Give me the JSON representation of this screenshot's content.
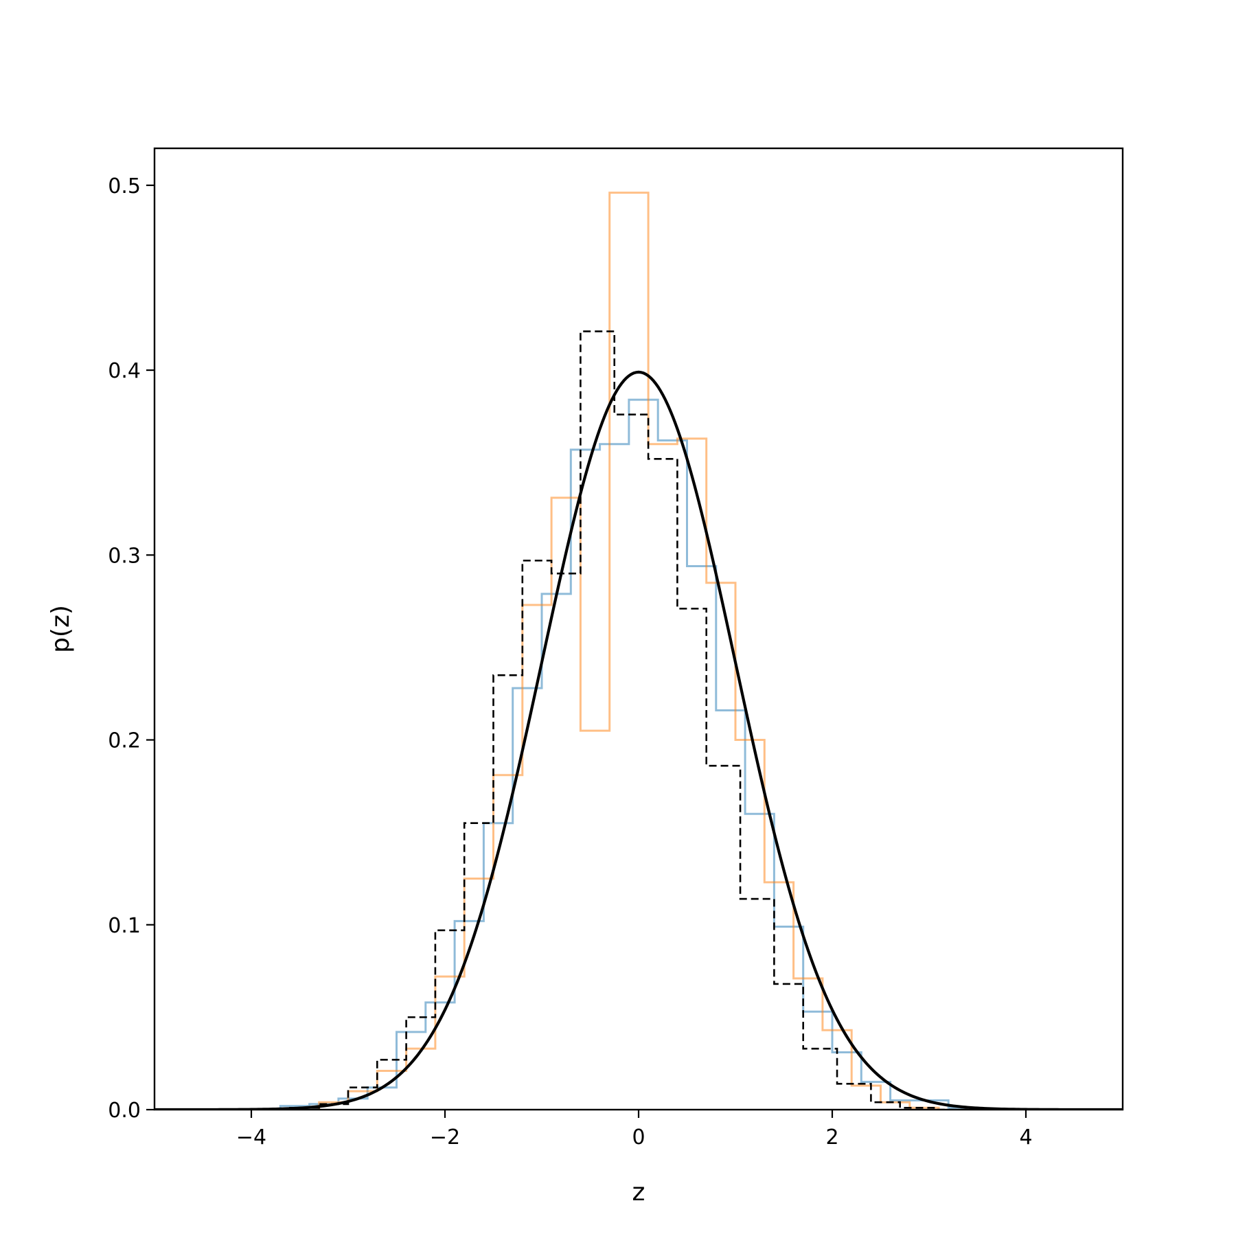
{
  "chart_data": {
    "type": "histogram",
    "xlabel": "z",
    "ylabel": "p(z)",
    "xlim": [
      -5,
      5
    ],
    "ylim": [
      0,
      0.52
    ],
    "x_ticks": [
      -4,
      -2,
      0,
      2,
      4
    ],
    "x_tick_labels": [
      "−4",
      "−2",
      "0",
      "2",
      "4"
    ],
    "y_ticks": [
      0.0,
      0.1,
      0.2,
      0.3,
      0.4,
      0.5
    ],
    "y_tick_labels": [
      "0.0",
      "0.1",
      "0.2",
      "0.3",
      "0.4",
      "0.5"
    ],
    "grid": false,
    "legend": "none",
    "series": [
      {
        "style": "step",
        "color": "#1f77b4",
        "opacity": 0.5,
        "edges": [
          -3.7,
          -3.4,
          -3.1,
          -2.8,
          -2.5,
          -2.2,
          -1.9,
          -1.6,
          -1.3,
          -1.0,
          -0.7,
          -0.4,
          -0.1,
          0.2,
          0.5,
          0.8,
          1.1,
          1.4,
          1.7,
          2.0,
          2.3,
          2.6,
          2.9,
          3.2,
          3.5,
          3.7
        ],
        "values": [
          0.002,
          0.003,
          0.006,
          0.012,
          0.042,
          0.058,
          0.102,
          0.155,
          0.228,
          0.279,
          0.357,
          0.36,
          0.384,
          0.362,
          0.294,
          0.216,
          0.16,
          0.099,
          0.053,
          0.031,
          0.015,
          0.005,
          0.005,
          0.001,
          0.0
        ]
      },
      {
        "style": "step",
        "color": "#ff7f0e",
        "opacity": 0.5,
        "edges": [
          -3.3,
          -3.0,
          -2.7,
          -2.4,
          -2.1,
          -1.8,
          -1.5,
          -1.2,
          -0.9,
          -0.6,
          -0.3,
          0.1,
          0.4,
          0.7,
          1.0,
          1.3,
          1.6,
          1.9,
          2.2,
          2.5,
          2.8,
          3.1
        ],
        "values": [
          0.004,
          0.01,
          0.021,
          0.033,
          0.072,
          0.125,
          0.181,
          0.273,
          0.331,
          0.205,
          0.496,
          0.36,
          0.363,
          0.285,
          0.2,
          0.123,
          0.071,
          0.043,
          0.013,
          0.004,
          0.001
        ]
      },
      {
        "style": "step-dashed",
        "color": "#000000",
        "edges": [
          -3.6,
          -3.3,
          -3.0,
          -2.7,
          -2.4,
          -2.1,
          -1.8,
          -1.5,
          -1.2,
          -0.9,
          -0.6,
          -0.25,
          0.1,
          0.4,
          0.7,
          1.05,
          1.4,
          1.7,
          2.05,
          2.4,
          2.7,
          3.05,
          3.4
        ],
        "values": [
          0.001,
          0.003,
          0.012,
          0.027,
          0.05,
          0.097,
          0.155,
          0.235,
          0.297,
          0.29,
          0.421,
          0.376,
          0.352,
          0.271,
          0.186,
          0.114,
          0.068,
          0.033,
          0.014,
          0.004,
          0.001,
          0.0
        ]
      },
      {
        "style": "line",
        "color": "#000000",
        "function": "standard normal density",
        "x_range": [
          -5,
          5
        ],
        "peak": 0.399
      }
    ]
  }
}
